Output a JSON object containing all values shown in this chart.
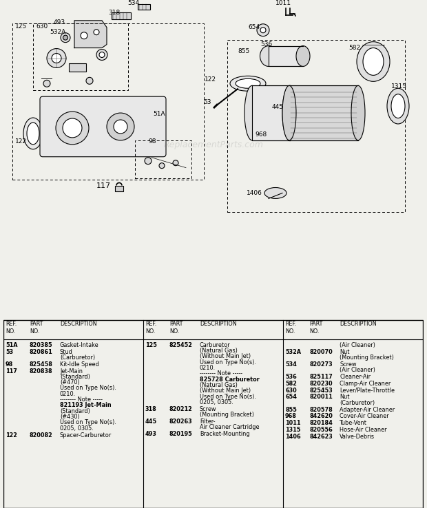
{
  "bg_color": "#f0f0eb",
  "diagram_bg": "#ffffff",
  "watermark": "ReplacementParts.com",
  "col1_rows": [
    [
      "51A",
      "820385",
      "Gasket-Intake"
    ],
    [
      "53",
      "820861",
      "Stud\n(Carburetor)"
    ],
    [
      "98",
      "825458",
      "Kit-Idle Speed"
    ],
    [
      "117",
      "820838",
      "Jet-Main\n(Standard)\n(#470)\nUsed on Type No(s).\n0210.\n-------- Note -----\n821193 Jet-Main\n(Standard)\n(#430)\nUsed on Type No(s).\n0205, 0305."
    ],
    [
      "122",
      "820082",
      "Spacer-Carburetor"
    ]
  ],
  "col2_rows": [
    [
      "125",
      "825452",
      "Carburetor\n(Natural Gas)\n(Without Main Jet)\nUsed on Type No(s).\n0210.\n-------- Note -----\n825728 Carburetor\n(Natural Gas)\n(Without Main Jet)\nUsed on Type No(s).\n0205, 0305."
    ],
    [
      "318",
      "820212",
      "Screw\n(Mounting Bracket)"
    ],
    [
      "445",
      "820263",
      "Filter-\nAir Cleaner Cartridge"
    ],
    [
      "493",
      "820195",
      "Bracket-Mounting"
    ]
  ],
  "col3_rows": [
    [
      "",
      "",
      "(Air Cleaner)"
    ],
    [
      "532A",
      "820070",
      "Nut\n(Mounting Bracket)"
    ],
    [
      "534",
      "820273",
      "Screw\n(Air Cleaner)"
    ],
    [
      "536",
      "825117",
      "Cleaner-Air"
    ],
    [
      "582",
      "820230",
      "Clamp-Air Cleaner"
    ],
    [
      "630",
      "825453",
      "Lever/Plate-Throttle"
    ],
    [
      "654",
      "820011",
      "Nut\n(Carburetor)"
    ],
    [
      "855",
      "820578",
      "Adapter-Air Cleaner"
    ],
    [
      "968",
      "842620",
      "Cover-Air Cleaner"
    ],
    [
      "1011",
      "820184",
      "Tube-Vent"
    ],
    [
      "1315",
      "820556",
      "Hose-Air Cleaner"
    ],
    [
      "1406",
      "842623",
      "Valve-Debris"
    ]
  ]
}
